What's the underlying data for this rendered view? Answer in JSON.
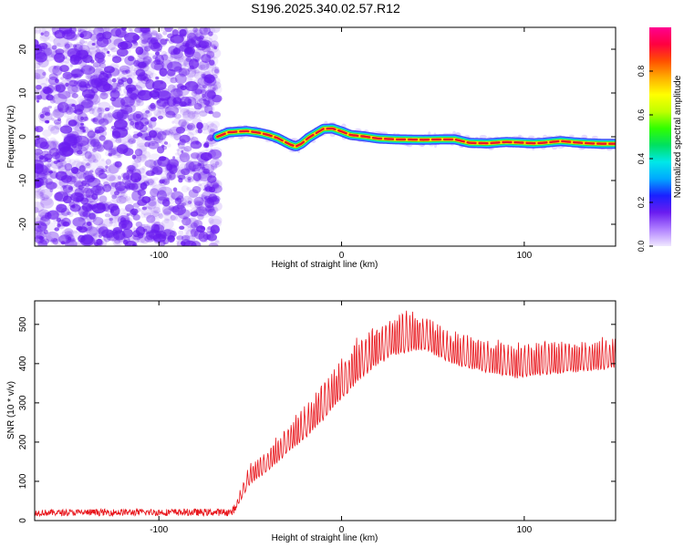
{
  "title": "S196.2025.340.02.57.R12",
  "colors": {
    "axis": "#000000",
    "snr_line": "#e8141a",
    "noise_purple": "#6a1cf0",
    "ridge_core": "#e8142a",
    "ridge_mid": "#ffdc00",
    "ridge_outer": "#10d8e0",
    "ridge_edge": "#2030ff"
  },
  "chart_data": [
    {
      "type": "heatmap",
      "xlabel": "Height of straight line (km)",
      "ylabel": "Frequency (Hz)",
      "xlim": [
        -168,
        150
      ],
      "ylim": [
        -25,
        25
      ],
      "xticks": [
        {
          "value": -100,
          "label": "-100"
        },
        {
          "value": 0,
          "label": "0"
        },
        {
          "value": 100,
          "label": "100"
        }
      ],
      "yticks": [
        {
          "value": 20,
          "label": "20"
        },
        {
          "value": 10,
          "label": "10"
        },
        {
          "value": 0,
          "label": "0"
        },
        {
          "value": -10,
          "label": "-10"
        },
        {
          "value": -20,
          "label": "-20"
        }
      ],
      "noise_region_x": [
        -168,
        -68
      ],
      "ridge": {
        "x": [
          -68,
          -62,
          -52,
          -45,
          -40,
          -35,
          -28,
          -25,
          -22,
          -18,
          -14,
          -10,
          -5,
          0,
          5,
          12,
          20,
          30,
          45,
          55,
          62,
          70,
          80,
          90,
          96,
          105,
          110,
          120,
          128,
          135,
          142,
          150
        ],
        "freq": [
          0,
          1.0,
          1.3,
          0.9,
          0.4,
          -0.3,
          -1.8,
          -2.2,
          -1.6,
          -0.2,
          0.8,
          1.8,
          1.9,
          1.2,
          0.4,
          0.1,
          -0.4,
          -0.6,
          -0.7,
          -0.6,
          -0.6,
          -1.4,
          -1.5,
          -1.2,
          -1.3,
          -1.5,
          -1.4,
          -1.0,
          -1.3,
          -1.5,
          -1.6,
          -1.6
        ]
      },
      "colorbar": {
        "label": "Normalized spectral amplitude",
        "range": [
          0,
          1
        ],
        "ticks": [
          {
            "value": 0.0,
            "label": "0.0"
          },
          {
            "value": 0.2,
            "label": "0.2"
          },
          {
            "value": 0.4,
            "label": "0.4"
          },
          {
            "value": 0.6,
            "label": "0.6"
          },
          {
            "value": 0.8,
            "label": "0.8"
          }
        ],
        "stops": [
          "#f0e8ff",
          "#b080ff",
          "#6a1cf0",
          "#1a20ff",
          "#00a8ff",
          "#00e8e8",
          "#00e060",
          "#30ff00",
          "#c0ff00",
          "#ffff00",
          "#ffb000",
          "#ff5000",
          "#ff0040",
          "#ff0090"
        ]
      }
    },
    {
      "type": "line",
      "xlabel": "Height of straight line (km)",
      "ylabel": "SNR (10 * v/v)",
      "xlim": [
        -168,
        150
      ],
      "ylim": [
        0,
        560
      ],
      "xticks": [
        {
          "value": -100,
          "label": "-100"
        },
        {
          "value": 0,
          "label": "0"
        },
        {
          "value": 100,
          "label": "100"
        }
      ],
      "yticks": [
        {
          "value": 0,
          "label": "0"
        },
        {
          "value": 100,
          "label": "100"
        },
        {
          "value": 200,
          "label": "200"
        },
        {
          "value": 300,
          "label": "300"
        },
        {
          "value": 400,
          "label": "400"
        },
        {
          "value": 500,
          "label": "500"
        }
      ],
      "envelope": {
        "x": [
          -168,
          -120,
          -80,
          -60,
          -57,
          -50,
          -40,
          -30,
          -20,
          -10,
          0,
          10,
          20,
          28,
          35,
          45,
          55,
          65,
          75,
          85,
          95,
          105,
          115,
          125,
          135,
          150
        ],
        "base": [
          12,
          12,
          12,
          12,
          30,
          80,
          110,
          150,
          185,
          230,
          280,
          330,
          370,
          390,
          400,
          410,
          390,
          370,
          360,
          350,
          340,
          345,
          350,
          355,
          360,
          370
        ],
        "peak": [
          28,
          30,
          30,
          30,
          60,
          150,
          190,
          250,
          300,
          360,
          420,
          480,
          515,
          535,
          540,
          535,
          500,
          480,
          470,
          465,
          455,
          460,
          465,
          465,
          465,
          470
        ]
      }
    }
  ]
}
